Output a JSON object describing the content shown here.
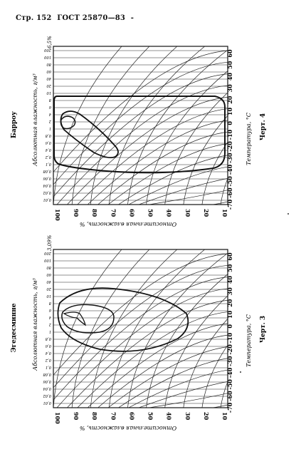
{
  "header": {
    "page": "Стр. 152",
    "standard": "ГОСТ 25870—83",
    "dash": "-"
  },
  "charts": [
    {
      "id": "top",
      "station": "Барроу",
      "caption": "Черт. 4",
      "corner_value": "6,5%",
      "abs_humidity_label": "Абсолютная влажность, г/м³",
      "rel_humidity_label": "Относительная влажность, %",
      "temperature_label": "Температура, °С",
      "abs_ticks": [
        "0,01",
        "0,02",
        "0,04",
        "0,06",
        "0,08",
        "0,1",
        "0,2",
        "0,4",
        "0,6",
        "0,8",
        "1",
        "2",
        "4",
        "6",
        "8",
        "10",
        "20",
        "40",
        "60",
        "80",
        "100",
        "200"
      ],
      "rel_ticks": [
        "100",
        "90",
        "80",
        "70",
        "60",
        "50",
        "40",
        "30",
        "20",
        "10"
      ],
      "temp_ticks": [
        "-70",
        "-60",
        "-50",
        "-40",
        "-30",
        "-20",
        "-10",
        "0",
        "10",
        "20",
        "30",
        "40",
        "50",
        "60"
      ]
    },
    {
      "id": "bottom",
      "station": "Эгедесминне",
      "caption": "Черт. 3",
      "corner_value": "3,09%",
      "abs_humidity_label": "Абсолютная влажность, г/м³",
      "rel_humidity_label": "Относительная влажность, %",
      "temperature_label": "Температура, °С",
      "abs_ticks": [
        "0,01",
        "0,02",
        "0,04",
        "0,06",
        "0,08",
        "0,1",
        "0,2",
        "0,4",
        "0,6",
        "0,8",
        "1",
        "2",
        "4",
        "6",
        "8",
        "10",
        "20",
        "40",
        "60",
        "80",
        "100",
        "200"
      ],
      "rel_ticks": [
        "100",
        "90",
        "80",
        "70",
        "60",
        "50",
        "40",
        "30",
        "20",
        "10"
      ],
      "temp_ticks": [
        "-70",
        "-60",
        "-50",
        "-40",
        "-30",
        "-20",
        "-10",
        "0",
        "10",
        "20",
        "30",
        "40",
        "50",
        "60"
      ]
    }
  ]
}
